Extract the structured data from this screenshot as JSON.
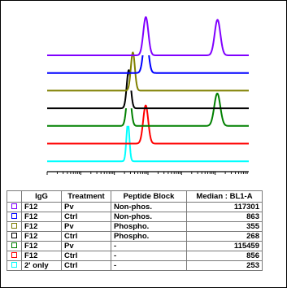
{
  "chart_data": {
    "type": "histogram-overlay",
    "x_scale": "log",
    "xlim": [
      1,
      1000000
    ],
    "grid": false,
    "tracks": [
      {
        "color": "#8000ff",
        "peaks": [
          {
            "center": 863,
            "height": 1.0,
            "width": 0.075
          },
          {
            "center": 117301,
            "height": 0.93,
            "width": 0.085
          }
        ]
      },
      {
        "color": "#0000ff",
        "peaks": [
          {
            "center": 863,
            "height": 1.0,
            "width": 0.075
          }
        ]
      },
      {
        "color": "#808000",
        "peaks": [
          {
            "center": 355,
            "height": 1.0,
            "width": 0.06
          }
        ]
      },
      {
        "color": "#000000",
        "peaks": [
          {
            "center": 268,
            "height": 1.0,
            "width": 0.06
          }
        ]
      },
      {
        "color": "#008000",
        "peaks": [
          {
            "center": 268,
            "height": 1.0,
            "width": 0.065
          },
          {
            "center": 115459,
            "height": 0.85,
            "width": 0.09
          }
        ]
      },
      {
        "color": "#ff0000",
        "peaks": [
          {
            "center": 856,
            "height": 1.0,
            "width": 0.075
          }
        ]
      },
      {
        "color": "#00ffff",
        "peaks": [
          {
            "center": 253,
            "height": 1.0,
            "width": 0.045
          }
        ]
      }
    ]
  },
  "legend": {
    "headers": [
      "IgG",
      "Treatment",
      "Peptide Block",
      "Median : BL1-A"
    ],
    "rows": [
      {
        "color": "#8000ff",
        "igg": "F12",
        "treatment": "Pv",
        "peptide": "Non-phos.",
        "median": "117301"
      },
      {
        "color": "#0000ff",
        "igg": "F12",
        "treatment": "Ctrl",
        "peptide": "Non-phos.",
        "median": "863"
      },
      {
        "color": "#808000",
        "igg": "F12",
        "treatment": "Pv",
        "peptide": "Phospho.",
        "median": "355"
      },
      {
        "color": "#000000",
        "igg": "F12",
        "treatment": "Ctrl",
        "peptide": "Phospho.",
        "median": "268"
      },
      {
        "color": "#008000",
        "igg": "F12",
        "treatment": "Pv",
        "peptide": "-",
        "median": "115459"
      },
      {
        "color": "#ff0000",
        "igg": "F12",
        "treatment": "Ctrl",
        "peptide": "-",
        "median": "856"
      },
      {
        "color": "#00ffff",
        "igg": "2' only",
        "treatment": "Ctrl",
        "peptide": "-",
        "median": "253"
      }
    ]
  }
}
